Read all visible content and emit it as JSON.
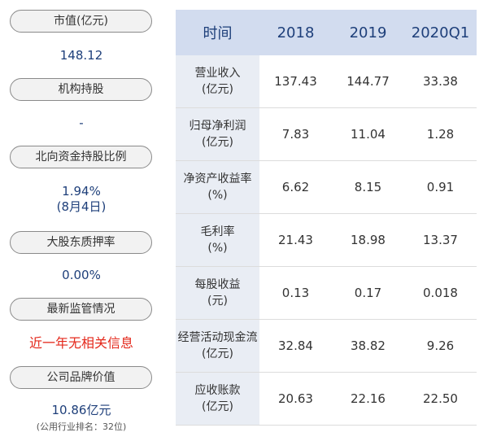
{
  "left": {
    "blocks": [
      {
        "label": "市值(亿元)",
        "value": "148.12"
      },
      {
        "label": "机构持股",
        "value": "-"
      },
      {
        "label": "北向资金持股比例",
        "value": "1.94%",
        "value2": "(8月4日)"
      },
      {
        "label": "大股东质押率",
        "value": "0.00%"
      },
      {
        "label": "最新监管情况",
        "value": "近一年无相关信息"
      },
      {
        "label": "公司品牌价值",
        "value": "10.86亿元",
        "note": "(公用行业排名：32位)"
      }
    ]
  },
  "table": {
    "headers": [
      "时间",
      "2018",
      "2019",
      "2020Q1"
    ],
    "rows": [
      {
        "name": "营业收入",
        "unit": "(亿元)",
        "values": [
          "137.43",
          "144.77",
          "33.38"
        ]
      },
      {
        "name": "归母净利润",
        "unit": "(亿元)",
        "values": [
          "7.83",
          "11.04",
          "1.28"
        ]
      },
      {
        "name": "净资产收益率",
        "unit": "(%)",
        "values": [
          "6.62",
          "8.15",
          "0.91"
        ]
      },
      {
        "name": "毛利率",
        "unit": "(%)",
        "values": [
          "21.43",
          "18.98",
          "13.37"
        ]
      },
      {
        "name": "每股收益",
        "unit": "(元)",
        "values": [
          "0.13",
          "0.17",
          "0.018"
        ]
      },
      {
        "name": "经营活动现金流",
        "unit": "(亿元)",
        "values": [
          "32.84",
          "38.82",
          "9.26"
        ]
      },
      {
        "name": "应收账款",
        "unit": "(亿元)",
        "values": [
          "20.63",
          "22.16",
          "22.50"
        ]
      }
    ]
  },
  "colors": {
    "header_bg": "#d2dcef",
    "name_bg": "#e9edf4",
    "value_blue": "#1e3f7a",
    "alert_red": "#e4281b"
  }
}
